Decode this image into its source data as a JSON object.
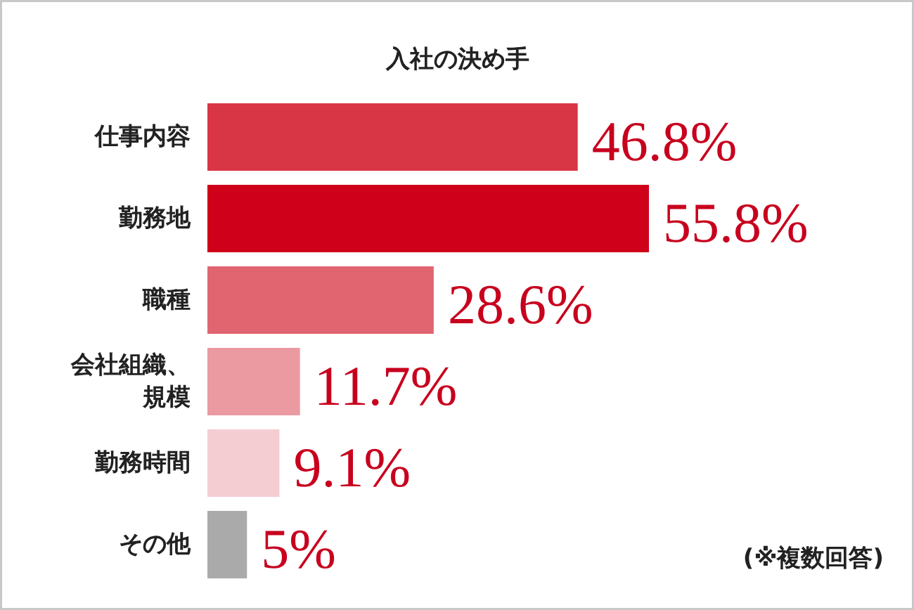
{
  "chart_data": {
    "type": "bar",
    "orientation": "horizontal",
    "title": "入社の決め手",
    "categories": [
      "仕事内容",
      "勤務地",
      "職種",
      "会社組織、規模",
      "勤務時間",
      "その他"
    ],
    "values": [
      46.8,
      55.8,
      28.6,
      11.7,
      9.1,
      5
    ],
    "colors": [
      "#d93645",
      "#cf0019",
      "#e06570",
      "#ea9aa0",
      "#f4cdd2",
      "#aaaaaa"
    ],
    "value_labels": [
      "46.8%",
      "55.8%",
      "28.6%",
      "11.7%",
      "9.1%",
      "5%"
    ],
    "annotations": [
      "(※複数回答)"
    ]
  }
}
